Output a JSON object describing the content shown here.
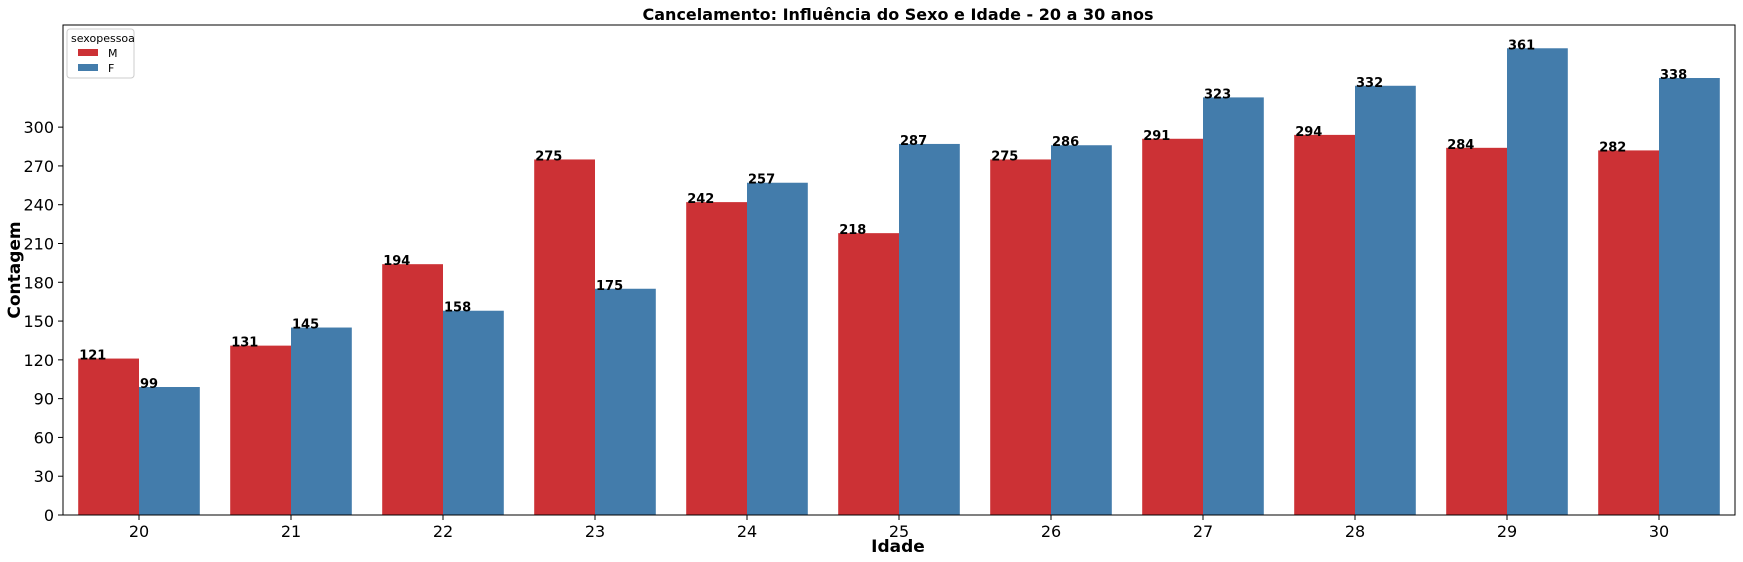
{
  "chart_data": {
    "type": "bar",
    "title": "Cancelamento: Influência do Sexo e Idade - 20 a 30 anos",
    "xlabel": "Idade",
    "ylabel": "Contagem",
    "categories": [
      "20",
      "21",
      "22",
      "23",
      "24",
      "25",
      "26",
      "27",
      "28",
      "29",
      "30"
    ],
    "series": [
      {
        "name": "M",
        "color": "#cc3135",
        "values": [
          121,
          131,
          194,
          275,
          242,
          218,
          275,
          291,
          294,
          284,
          282
        ]
      },
      {
        "name": "F",
        "color": "#437cab",
        "values": [
          99,
          145,
          158,
          175,
          257,
          287,
          286,
          323,
          332,
          361,
          338
        ]
      }
    ],
    "yticks": [
      0,
      30,
      60,
      90,
      120,
      150,
      180,
      210,
      240,
      270,
      300
    ],
    "ylim": [
      0,
      379
    ],
    "grid": false,
    "legend": {
      "title": "sexopessoa",
      "placement": "top-left"
    }
  }
}
